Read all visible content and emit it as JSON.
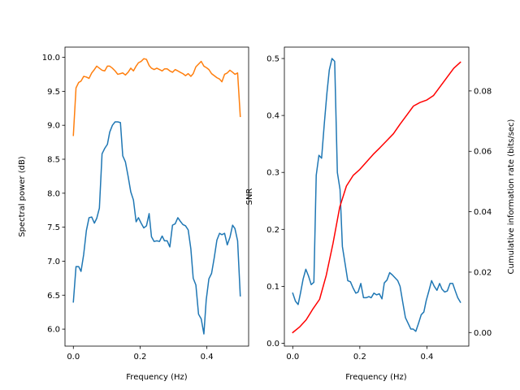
{
  "chart_data": [
    {
      "type": "line",
      "xlabel": "Frequency (Hz)",
      "ylabel": "Spectral power (dB)",
      "xlim": [
        -0.025,
        0.525
      ],
      "ylim": [
        5.75,
        10.15
      ],
      "xticks": [
        0.0,
        0.2,
        0.4
      ],
      "xtick_labels": [
        "0.0",
        "0.2",
        "0.4"
      ],
      "yticks": [
        6.0,
        6.5,
        7.0,
        7.5,
        8.0,
        8.5,
        9.0,
        9.5,
        10.0
      ],
      "ytick_labels": [
        "6.0",
        "6.5",
        "7.0",
        "7.5",
        "8.0",
        "8.5",
        "9.0",
        "9.5",
        "10.0"
      ],
      "grid": false,
      "series": [
        {
          "color": "#1f77b4",
          "x": [
            0.0,
            0.008,
            0.016,
            0.023,
            0.031,
            0.039,
            0.047,
            0.055,
            0.063,
            0.07,
            0.078,
            0.086,
            0.094,
            0.102,
            0.109,
            0.117,
            0.125,
            0.133,
            0.141,
            0.148,
            0.156,
            0.164,
            0.172,
            0.18,
            0.188,
            0.195,
            0.203,
            0.211,
            0.219,
            0.227,
            0.234,
            0.242,
            0.25,
            0.258,
            0.266,
            0.273,
            0.281,
            0.289,
            0.297,
            0.305,
            0.313,
            0.32,
            0.328,
            0.336,
            0.344,
            0.352,
            0.359,
            0.367,
            0.375,
            0.383,
            0.391,
            0.398,
            0.406,
            0.414,
            0.422,
            0.43,
            0.438,
            0.445,
            0.453,
            0.461,
            0.469,
            0.477,
            0.484,
            0.492,
            0.5
          ],
          "y": [
            6.4,
            6.92,
            6.92,
            6.85,
            7.1,
            7.45,
            7.64,
            7.65,
            7.56,
            7.63,
            7.78,
            8.58,
            8.66,
            8.72,
            8.9,
            9.0,
            9.05,
            9.05,
            9.04,
            8.55,
            8.46,
            8.25,
            8.02,
            7.9,
            7.58,
            7.64,
            7.56,
            7.49,
            7.52,
            7.7,
            7.36,
            7.29,
            7.3,
            7.29,
            7.37,
            7.3,
            7.3,
            7.21,
            7.53,
            7.55,
            7.64,
            7.59,
            7.54,
            7.52,
            7.46,
            7.18,
            6.75,
            6.65,
            6.22,
            6.15,
            5.93,
            6.43,
            6.74,
            6.82,
            7.05,
            7.31,
            7.41,
            7.39,
            7.41,
            7.24,
            7.35,
            7.53,
            7.48,
            7.3,
            6.49
          ]
        },
        {
          "color": "#ff7f0e",
          "x": [
            0.0,
            0.008,
            0.016,
            0.023,
            0.031,
            0.039,
            0.047,
            0.055,
            0.063,
            0.07,
            0.078,
            0.086,
            0.094,
            0.102,
            0.109,
            0.117,
            0.125,
            0.133,
            0.141,
            0.148,
            0.156,
            0.164,
            0.172,
            0.18,
            0.188,
            0.195,
            0.203,
            0.211,
            0.219,
            0.227,
            0.234,
            0.242,
            0.25,
            0.258,
            0.266,
            0.273,
            0.281,
            0.289,
            0.297,
            0.305,
            0.313,
            0.32,
            0.328,
            0.336,
            0.344,
            0.352,
            0.359,
            0.367,
            0.375,
            0.383,
            0.391,
            0.398,
            0.406,
            0.414,
            0.422,
            0.43,
            0.438,
            0.445,
            0.453,
            0.461,
            0.469,
            0.477,
            0.484,
            0.492,
            0.5
          ],
          "y": [
            8.85,
            9.55,
            9.63,
            9.65,
            9.72,
            9.71,
            9.69,
            9.77,
            9.82,
            9.87,
            9.84,
            9.81,
            9.8,
            9.87,
            9.87,
            9.84,
            9.8,
            9.75,
            9.76,
            9.77,
            9.74,
            9.78,
            9.84,
            9.8,
            9.87,
            9.92,
            9.94,
            9.98,
            9.97,
            9.88,
            9.84,
            9.82,
            9.84,
            9.82,
            9.8,
            9.83,
            9.83,
            9.8,
            9.78,
            9.82,
            9.8,
            9.78,
            9.76,
            9.73,
            9.76,
            9.72,
            9.76,
            9.86,
            9.9,
            9.94,
            9.87,
            9.85,
            9.82,
            9.76,
            9.73,
            9.7,
            9.68,
            9.64,
            9.75,
            9.77,
            9.81,
            9.78,
            9.75,
            9.77,
            9.13
          ]
        }
      ]
    },
    {
      "type": "line",
      "xlabel": "Frequency (Hz)",
      "ylabel": "SNR",
      "y2label": "Cumulative information rate (bits/sec)",
      "xlim": [
        -0.025,
        0.525
      ],
      "ylim": [
        -0.005,
        0.52
      ],
      "y2lim": [
        -0.0045,
        0.0945
      ],
      "xticks": [
        0.0,
        0.2,
        0.4
      ],
      "xtick_labels": [
        "0.0",
        "0.2",
        "0.4"
      ],
      "yticks": [
        0.0,
        0.1,
        0.2,
        0.3,
        0.4,
        0.5
      ],
      "ytick_labels": [
        "0.0",
        "0.1",
        "0.2",
        "0.3",
        "0.4",
        "0.5"
      ],
      "y2ticks": [
        0.0,
        0.02,
        0.04,
        0.06,
        0.08
      ],
      "y2tick_labels": [
        "0.00",
        "0.02",
        "0.04",
        "0.06",
        "0.08"
      ],
      "grid": false,
      "series": [
        {
          "color": "#1f77b4",
          "axis": "left",
          "x": [
            0.0,
            0.008,
            0.016,
            0.023,
            0.031,
            0.039,
            0.047,
            0.055,
            0.063,
            0.07,
            0.078,
            0.086,
            0.094,
            0.102,
            0.109,
            0.117,
            0.125,
            0.133,
            0.141,
            0.148,
            0.156,
            0.164,
            0.172,
            0.18,
            0.188,
            0.195,
            0.203,
            0.211,
            0.219,
            0.227,
            0.234,
            0.242,
            0.25,
            0.258,
            0.266,
            0.273,
            0.281,
            0.289,
            0.297,
            0.305,
            0.313,
            0.32,
            0.328,
            0.336,
            0.344,
            0.352,
            0.359,
            0.367,
            0.375,
            0.383,
            0.391,
            0.398,
            0.406,
            0.414,
            0.422,
            0.43,
            0.438,
            0.445,
            0.453,
            0.461,
            0.469,
            0.477,
            0.484,
            0.492,
            0.5
          ],
          "y": [
            0.088,
            0.074,
            0.068,
            0.088,
            0.113,
            0.13,
            0.118,
            0.103,
            0.107,
            0.295,
            0.33,
            0.325,
            0.385,
            0.44,
            0.48,
            0.5,
            0.495,
            0.3,
            0.27,
            0.17,
            0.14,
            0.11,
            0.108,
            0.097,
            0.088,
            0.09,
            0.105,
            0.08,
            0.08,
            0.082,
            0.08,
            0.088,
            0.085,
            0.087,
            0.078,
            0.106,
            0.111,
            0.124,
            0.12,
            0.115,
            0.11,
            0.1,
            0.072,
            0.045,
            0.035,
            0.025,
            0.025,
            0.021,
            0.035,
            0.05,
            0.055,
            0.075,
            0.092,
            0.11,
            0.1,
            0.093,
            0.105,
            0.095,
            0.09,
            0.092,
            0.105,
            0.105,
            0.093,
            0.08,
            0.072
          ]
        },
        {
          "color": "#ff0000",
          "axis": "right",
          "x": [
            0.0,
            0.02,
            0.04,
            0.06,
            0.08,
            0.1,
            0.12,
            0.14,
            0.16,
            0.18,
            0.2,
            0.22,
            0.24,
            0.26,
            0.28,
            0.3,
            0.32,
            0.34,
            0.36,
            0.38,
            0.4,
            0.42,
            0.44,
            0.46,
            0.48,
            0.5
          ],
          "y": [
            0.0,
            0.0018,
            0.0042,
            0.0078,
            0.011,
            0.019,
            0.0295,
            0.0415,
            0.0485,
            0.052,
            0.054,
            0.0565,
            0.059,
            0.0612,
            0.0635,
            0.0658,
            0.069,
            0.072,
            0.075,
            0.0762,
            0.077,
            0.0785,
            0.0815,
            0.0845,
            0.0875,
            0.0895
          ]
        }
      ]
    }
  ]
}
